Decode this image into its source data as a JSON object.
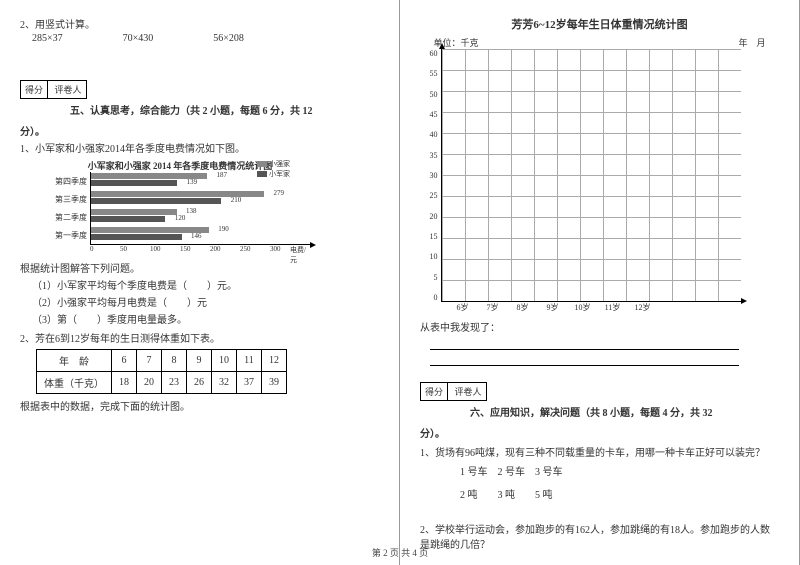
{
  "left": {
    "q2": {
      "title": "2、用竖式计算。",
      "items": [
        "285×37",
        "70×430",
        "56×208"
      ]
    },
    "score": {
      "a": "得分",
      "b": "评卷人"
    },
    "sec5": {
      "title": "五、认真思考，综合能力（共 2 小题，每题 6 分，共 12",
      "cont": "分）。"
    },
    "p1": {
      "text": "1、小军家和小强家2014年各季度电费情况如下图。",
      "chartTitle": "小军家和小强家 2014 年各季度电费情况统计图",
      "legend": {
        "a": "小强家",
        "b": "小军家"
      },
      "rows": [
        {
          "label": "第四季度",
          "a": 187,
          "b": 139
        },
        {
          "label": "第三季度",
          "a": 279,
          "b": 210
        },
        {
          "label": "第二季度",
          "a": 138,
          "b": 120
        },
        {
          "label": "第一季度",
          "a": 190,
          "b": 146
        }
      ],
      "xaxis": {
        "ticks": [
          0,
          50,
          100,
          150,
          200,
          250,
          300
        ],
        "label": "电费/元"
      },
      "after": "根据统计图解答下列问题。",
      "subs": [
        "（1）小军家平均每个季度电费是（　　）元。",
        "（2）小强家平均每月电费是（　　）元",
        "（3）第（　　）季度用电量最多。"
      ]
    },
    "p2": {
      "text": "2、芳在6到12岁每年的生日测得体重如下表。",
      "table": {
        "h1": "年　龄",
        "h2": "体重（千克）",
        "ages": [
          "6",
          "7",
          "8",
          "9",
          "10",
          "11",
          "12"
        ],
        "weights": [
          "18",
          "20",
          "23",
          "26",
          "32",
          "37",
          "39"
        ]
      },
      "after": "根据表中的数据，完成下面的统计图。"
    }
  },
  "right": {
    "chart": {
      "title": "芳芳6~12岁每年生日体重情况统计图",
      "unit": "单位：千克",
      "date": "年　月",
      "ymax": 60,
      "ystep": 5,
      "xlabels": [
        "6岁",
        "7岁",
        "8岁",
        "9岁",
        "10岁",
        "11岁",
        "12岁"
      ]
    },
    "find": "从表中我发现了：",
    "score": {
      "a": "得分",
      "b": "评卷人"
    },
    "sec6": {
      "title": "六、应用知识，解决问题（共 8 小题，每题 4 分，共 32",
      "cont": "分）。"
    },
    "q1": {
      "text": "1、货场有96吨煤，现有三种不同载重量的卡车，用哪一种卡车正好可以装完？",
      "opts": "1 号车　2 号车　3 号车",
      "vals": "2 吨　　3 吨　　5 吨"
    },
    "q2": "2、学校举行运动会，参加跑步的有162人，参加跳绳的有18人。参加跑步的人数是跳绳的几倍？"
  },
  "footer": "第 2 页 共 4 页"
}
